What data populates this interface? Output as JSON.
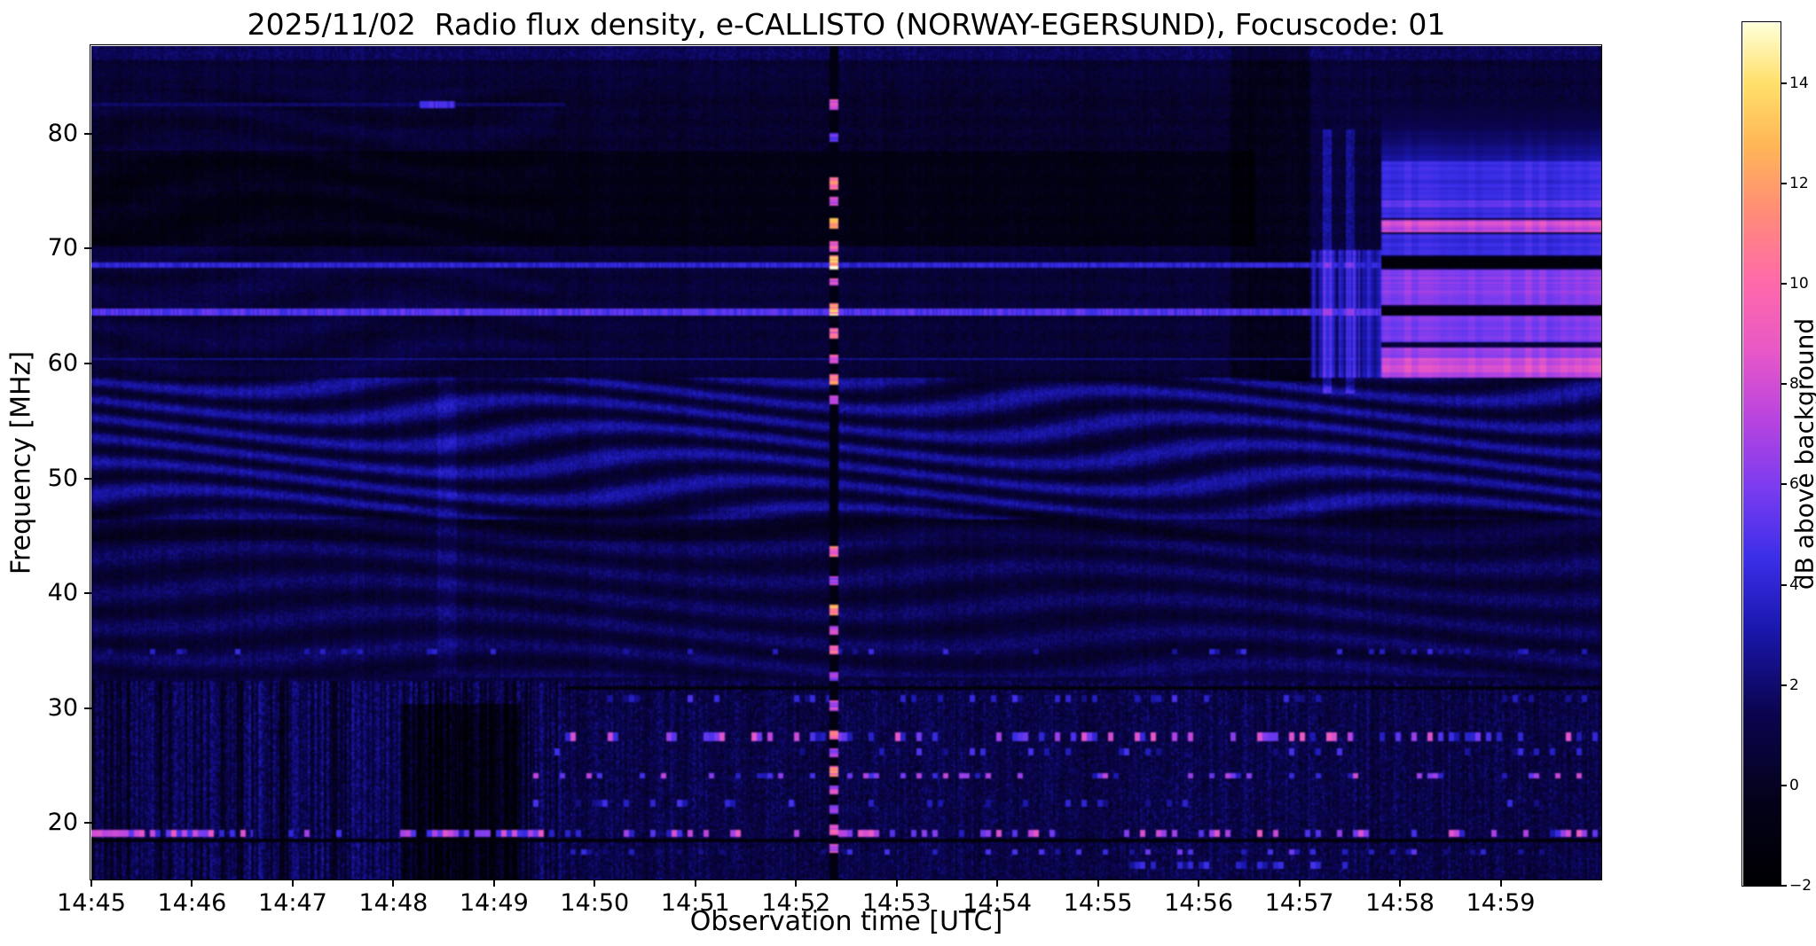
{
  "chart_data": {
    "type": "heatmap",
    "title": "2025/11/02  Radio flux density, e-CALLISTO (NORWAY-EGERSUND), Focuscode: 01",
    "xlabel": "Observation time [UTC]",
    "ylabel": "Frequency [MHz]",
    "x_tick_labels": [
      "14:45",
      "14:46",
      "14:47",
      "14:48",
      "14:49",
      "14:50",
      "14:51",
      "14:52",
      "14:53",
      "14:54",
      "14:55",
      "14:56",
      "14:57",
      "14:58",
      "14:59"
    ],
    "x_range_min": [
      0,
      15
    ],
    "y_tick_values": [
      80,
      70,
      60,
      50,
      40,
      30,
      20
    ],
    "y_range_mhz": [
      15.1,
      87.6
    ],
    "colorbar": {
      "label": "dB above background",
      "tick_values": [
        14,
        12,
        10,
        8,
        6,
        4,
        2,
        0,
        -2
      ],
      "tick_labels": [
        "14",
        "12",
        "10",
        "8",
        "6",
        "4",
        "2",
        "0",
        "−2"
      ],
      "vmin": -2,
      "vmax": 15.2,
      "stops": [
        {
          "t": 0.0,
          "c": "#000002"
        },
        {
          "t": 0.1,
          "c": "#04021a"
        },
        {
          "t": 0.2,
          "c": "#0b0550"
        },
        {
          "t": 0.3,
          "c": "#1b18b0"
        },
        {
          "t": 0.38,
          "c": "#3c2fe8"
        },
        {
          "t": 0.46,
          "c": "#7a3cf0"
        },
        {
          "t": 0.54,
          "c": "#b844e0"
        },
        {
          "t": 0.62,
          "c": "#e858c8"
        },
        {
          "t": 0.7,
          "c": "#ff6aaa"
        },
        {
          "t": 0.78,
          "c": "#ff8c78"
        },
        {
          "t": 0.86,
          "c": "#ffb757"
        },
        {
          "t": 0.93,
          "c": "#ffe06a"
        },
        {
          "t": 1.0,
          "c": "#ffffd9"
        }
      ]
    },
    "features": {
      "base": {
        "value": 0.85,
        "noise": 0.55,
        "col_amp": 0.22
      },
      "bottom": {
        "f_max": 32.5,
        "extra_noise": 1.6,
        "stripe_amp": 1.0,
        "left_t": 4.7,
        "left_stripe": 1.6,
        "dark_col_frac": 0.22
      },
      "wavy": [
        {
          "f0": 46.5,
          "f1": 58.8,
          "t0": 0,
          "t1": 15,
          "base": 0.75,
          "amp": 1.35,
          "kf": 2.9,
          "ka": 3.3,
          "kt": 1.05,
          "kft": 0.33,
          "ktd": 0.7
        },
        {
          "f0": 32.8,
          "f1": 46.5,
          "t0": 0,
          "t1": 15,
          "base": 0.25,
          "amp": 0.75,
          "kf": 2.35,
          "ka": 2.4,
          "kt": 0.85,
          "kft": 0.21,
          "ktd": 0.5
        },
        {
          "f0": 59.0,
          "f1": 84.0,
          "t0": 0,
          "t1": 4.6,
          "base": 0.1,
          "amp": 0.4,
          "kf": 1.8,
          "ka": 3.0,
          "kt": 1.3,
          "kft": 0.2,
          "ktd": 0.0
        },
        {
          "f0": 58.5,
          "f1": 87.6,
          "t0": 0,
          "t1": 15,
          "base": 0.0,
          "amp": 0.15,
          "kf": 3.7,
          "ka": 0.0,
          "kt": 0.0,
          "kft": 0.0,
          "ktd": 0.0
        }
      ],
      "zones": [
        {
          "f0": 58.5,
          "f1": 87.6,
          "t0": 0,
          "t1": 15,
          "dv": -0.25
        },
        {
          "f0": 86.4,
          "f1": 87.6,
          "t0": 0,
          "t1": 15,
          "dv": 1.0
        },
        {
          "f0": 70.3,
          "f1": 78.6,
          "t0": 0,
          "t1": 11.55,
          "dv": -1.45
        },
        {
          "f0": 78.6,
          "f1": 84.0,
          "t0": 0,
          "t1": 11.55,
          "dv": -0.35
        },
        {
          "f0": 58.5,
          "f1": 87.6,
          "t0": 11.3,
          "t1": 12.1,
          "dv": -1.1
        },
        {
          "f0": 44.6,
          "f1": 47.3,
          "t0": 0,
          "t1": 15,
          "dv": -0.65
        },
        {
          "f0": 15.1,
          "f1": 30.5,
          "t0": 3.05,
          "t1": 4.25,
          "dv": -1.9
        }
      ],
      "hlines": [
        {
          "f": 64.6,
          "th": 0.6,
          "v": 5.0,
          "t0": 0,
          "t1": 12.8
        },
        {
          "f": 68.62,
          "th": 0.45,
          "v": 4.0,
          "t0": 0,
          "t1": 12.8
        },
        {
          "f": 60.45,
          "th": 0.28,
          "v": 2.6,
          "t0": 0,
          "t1": 12.8
        },
        {
          "f": 82.6,
          "th": 0.3,
          "v": 1.8,
          "t0": 0,
          "t1": 4.7
        },
        {
          "f": 82.6,
          "th": 0.55,
          "v": 4.6,
          "t0": 3.25,
          "t1": 3.6
        },
        {
          "f": 18.55,
          "th": 0.35,
          "v": -1.4,
          "t0": 0,
          "t1": 15
        },
        {
          "f": 31.9,
          "th": 0.3,
          "v": -1.2,
          "t0": 4.7,
          "t1": 15
        }
      ],
      "speckle_rows": [
        {
          "f": 35.0,
          "th": 0.45,
          "t0": 0,
          "t1": 15,
          "density": 0.15,
          "vmin": 2,
          "vmax": 4.5
        },
        {
          "f": 30.9,
          "th": 0.5,
          "t0": 4.5,
          "t1": 15,
          "density": 0.18,
          "vmin": 2,
          "vmax": 5
        },
        {
          "f": 27.6,
          "th": 0.7,
          "t0": 4.2,
          "t1": 15,
          "density": 0.3,
          "vmin": 3,
          "vmax": 9
        },
        {
          "f": 26.3,
          "th": 0.5,
          "t0": 4.2,
          "t1": 15,
          "density": 0.15,
          "vmin": 2,
          "vmax": 5
        },
        {
          "f": 24.2,
          "th": 0.6,
          "t0": 4.2,
          "t1": 15,
          "density": 0.25,
          "vmin": 3,
          "vmax": 8
        },
        {
          "f": 21.8,
          "th": 0.5,
          "t0": 4.2,
          "t1": 15,
          "density": 0.12,
          "vmin": 2,
          "vmax": 5
        },
        {
          "f": 19.2,
          "th": 0.6,
          "t0": 0,
          "t1": 15,
          "density": 0.3,
          "vmin": 3,
          "vmax": 9
        },
        {
          "f": 17.6,
          "th": 0.5,
          "t0": 4,
          "t1": 15,
          "density": 0.2,
          "vmin": 2,
          "vmax": 6
        },
        {
          "f": 19.2,
          "th": 0.7,
          "t0": 0,
          "t1": 1.6,
          "density": 0.55,
          "vmin": 4,
          "vmax": 9
        },
        {
          "f": 19.2,
          "th": 0.7,
          "t0": 3.3,
          "t1": 4.6,
          "density": 0.55,
          "vmin": 4,
          "vmax": 9
        },
        {
          "f": 16.4,
          "th": 0.5,
          "t0": 10.3,
          "t1": 12.6,
          "density": 0.5,
          "vmin": 2,
          "vmax": 5
        }
      ],
      "right_bands": [
        {
          "f0": 58.8,
          "f1": 61.4,
          "t0": 12.8,
          "t1": 15,
          "v": 6.8
        },
        {
          "f0": 59.3,
          "f1": 60.6,
          "t0": 12.8,
          "t1": 15,
          "v": 8.4
        },
        {
          "f0": 61.9,
          "f1": 64.2,
          "t0": 12.8,
          "t1": 15,
          "v": 6.0
        },
        {
          "f0": 64.3,
          "f1": 65.05,
          "t0": 12.8,
          "t1": 15,
          "v": -1.6
        },
        {
          "f0": 65.15,
          "f1": 68.3,
          "t0": 12.8,
          "t1": 15,
          "v": 6.4
        },
        {
          "f0": 68.45,
          "f1": 69.3,
          "t0": 12.8,
          "t1": 15,
          "v": -1.6
        },
        {
          "f0": 69.4,
          "f1": 71.4,
          "t0": 12.8,
          "t1": 15,
          "v": 4.4
        },
        {
          "f0": 71.5,
          "f1": 72.6,
          "t0": 12.8,
          "t1": 15,
          "v": 8.0
        },
        {
          "f0": 72.7,
          "f1": 77.6,
          "t0": 12.8,
          "t1": 15,
          "v": 4.4
        },
        {
          "f0": 73.6,
          "f1": 74.3,
          "t0": 12.8,
          "t1": 15,
          "v": 5.6
        },
        {
          "f0": 77.6,
          "f1": 83.5,
          "t0": 12.8,
          "t1": 15,
          "v": 3.0,
          "fade": true
        },
        {
          "f0": 58.8,
          "f1": 70.0,
          "t0": 12.1,
          "t1": 12.8,
          "v": 3.4,
          "colmod": true
        }
      ],
      "bright_columns": [
        {
          "t": 12.27,
          "hw": 0.05,
          "f0": 57.5,
          "f1": 80.5,
          "dv": 2.3
        },
        {
          "t": 12.5,
          "hw": 0.04,
          "f0": 57.5,
          "f1": 80.5,
          "dv": 1.8
        },
        {
          "t": 3.52,
          "hw": 0.1,
          "f0": 33.0,
          "f1": 59.0,
          "dv": 0.7
        }
      ],
      "burst": {
        "t": 7.37,
        "hw": 0.045,
        "segments": [
          {
            "f0": 82.2,
            "f1": 83.1,
            "v": 9
          },
          {
            "f0": 79.4,
            "f1": 80.1,
            "v": 5.5
          },
          {
            "f0": 75.2,
            "f1": 76.3,
            "v": 10.5
          },
          {
            "f0": 73.8,
            "f1": 74.6,
            "v": 7.5
          },
          {
            "f0": 71.8,
            "f1": 72.7,
            "v": 11.5
          },
          {
            "f0": 69.8,
            "f1": 70.7,
            "v": 9.5
          },
          {
            "f0": 68.2,
            "f1": 69.5,
            "v": 13.5
          },
          {
            "f0": 66.8,
            "f1": 67.5,
            "v": 8.5
          },
          {
            "f0": 64.2,
            "f1": 65.3,
            "v": 12.5
          },
          {
            "f0": 62.2,
            "f1": 63.1,
            "v": 9.5
          },
          {
            "f0": 60.0,
            "f1": 60.9,
            "v": 8.5
          },
          {
            "f0": 58.2,
            "f1": 59.1,
            "v": 10.5
          },
          {
            "f0": 56.5,
            "f1": 57.3,
            "v": 6.5
          },
          {
            "f0": 43.2,
            "f1": 44.1,
            "v": 10.5
          },
          {
            "f0": 40.8,
            "f1": 41.6,
            "v": 6.5
          },
          {
            "f0": 38.2,
            "f1": 39.1,
            "v": 11.5
          },
          {
            "f0": 36.5,
            "f1": 37.3,
            "v": 7.5
          },
          {
            "f0": 34.8,
            "f1": 35.6,
            "v": 9.5
          },
          {
            "f0": 32.5,
            "f1": 33.3,
            "v": 6.5
          },
          {
            "f0": 29.8,
            "f1": 30.7,
            "v": 7.5
          },
          {
            "f0": 27.3,
            "f1": 28.2,
            "v": 9.5
          },
          {
            "f0": 25.8,
            "f1": 26.6,
            "v": 6.5
          },
          {
            "f0": 24.2,
            "f1": 25.1,
            "v": 10.5
          },
          {
            "f0": 22.6,
            "f1": 23.4,
            "v": 7.5
          },
          {
            "f0": 20.9,
            "f1": 21.7,
            "v": 6.5
          },
          {
            "f0": 19.0,
            "f1": 19.9,
            "v": 8.5
          },
          {
            "f0": 17.5,
            "f1": 18.3,
            "v": 7.5
          }
        ]
      }
    }
  }
}
